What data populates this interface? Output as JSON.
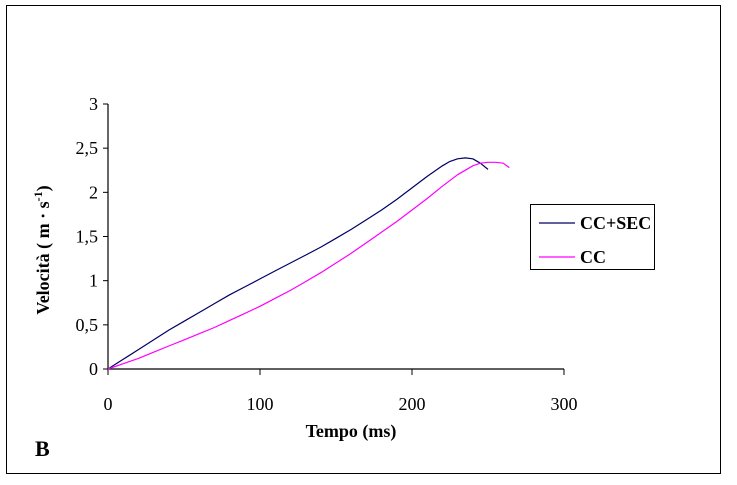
{
  "panel_label": "B",
  "chart_data": {
    "type": "line",
    "title": "",
    "xlabel": "Tempo (ms)",
    "ylabel_main": "Velocità ( m · s",
    "ylabel_sup": "-1",
    "ylabel_close": ")",
    "xlim": [
      0,
      300
    ],
    "ylim": [
      0,
      3
    ],
    "x_ticks": [
      0,
      100,
      200,
      300
    ],
    "x_tick_labels": [
      "0",
      "100",
      "200",
      "300"
    ],
    "y_ticks": [
      0,
      0.5,
      1,
      1.5,
      2,
      2.5,
      3
    ],
    "y_tick_labels": [
      "0",
      "0,5",
      "1",
      "1,5",
      "2",
      "2,5",
      "3"
    ],
    "grid": false,
    "legend_position": "right",
    "series": [
      {
        "name": "CC+SEC",
        "color": "#000066",
        "x": [
          0,
          10,
          20,
          30,
          40,
          50,
          60,
          70,
          80,
          90,
          100,
          110,
          120,
          130,
          140,
          150,
          160,
          170,
          180,
          190,
          200,
          210,
          220,
          225,
          230,
          235,
          240,
          245,
          250
        ],
        "y": [
          0,
          0.11,
          0.22,
          0.33,
          0.44,
          0.54,
          0.64,
          0.74,
          0.84,
          0.93,
          1.02,
          1.11,
          1.2,
          1.29,
          1.38,
          1.48,
          1.58,
          1.69,
          1.8,
          1.92,
          2.05,
          2.18,
          2.3,
          2.35,
          2.38,
          2.39,
          2.38,
          2.33,
          2.26
        ]
      },
      {
        "name": "CC",
        "color": "#FF00FF",
        "x": [
          0,
          10,
          20,
          30,
          40,
          50,
          60,
          70,
          80,
          90,
          100,
          110,
          120,
          130,
          140,
          150,
          160,
          170,
          180,
          190,
          200,
          210,
          220,
          230,
          235,
          240,
          245,
          250,
          255,
          260,
          264
        ],
        "y": [
          0,
          0.06,
          0.12,
          0.19,
          0.26,
          0.33,
          0.4,
          0.47,
          0.55,
          0.63,
          0.71,
          0.8,
          0.89,
          0.99,
          1.09,
          1.2,
          1.31,
          1.43,
          1.55,
          1.67,
          1.8,
          1.93,
          2.07,
          2.2,
          2.25,
          2.3,
          2.33,
          2.34,
          2.34,
          2.33,
          2.28
        ]
      }
    ]
  }
}
